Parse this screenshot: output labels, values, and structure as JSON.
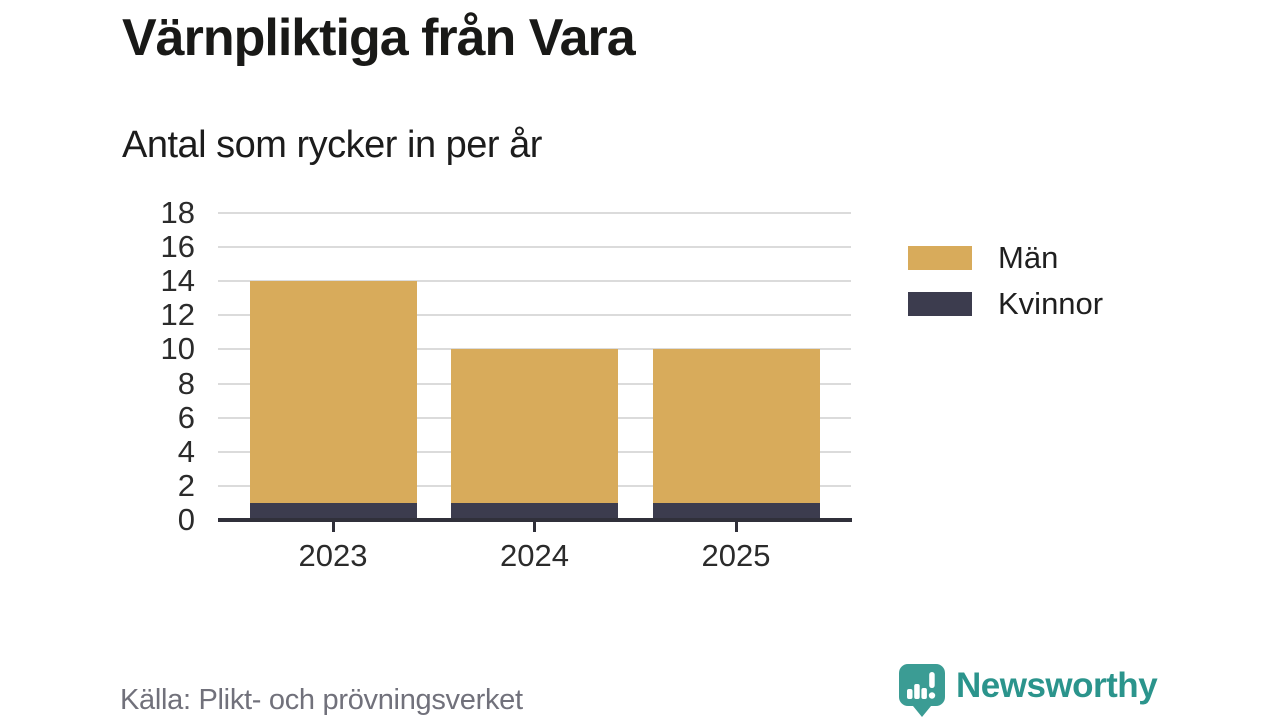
{
  "header": {
    "title": "Värnpliktiga från Vara",
    "subtitle": "Antal som rycker in per år"
  },
  "chart_data": {
    "type": "bar",
    "stacked": true,
    "title": "Värnpliktiga från Vara",
    "subtitle": "Antal som rycker in per år",
    "categories": [
      "2023",
      "2024",
      "2025"
    ],
    "series": [
      {
        "name": "Män",
        "color": "#D8AB5B",
        "values": [
          13,
          9,
          9
        ]
      },
      {
        "name": "Kvinnor",
        "color": "#3C3C4E",
        "values": [
          1,
          1,
          1
        ]
      }
    ],
    "stack_order_bottom_to_top": [
      "Kvinnor",
      "Män"
    ],
    "stack_totals": [
      14,
      10,
      10
    ],
    "ylim": [
      0,
      18
    ],
    "yticks": [
      0,
      2,
      4,
      6,
      8,
      10,
      12,
      14,
      16,
      18
    ],
    "xlabel": "",
    "ylabel": "",
    "grid": true,
    "legend_position": "right",
    "source": "Källa: Plikt- och prövningsverket",
    "colors": {
      "grid": "#DBDBDB",
      "axis": "#30303A",
      "tick_label": "#2B2B2B",
      "background": "#FFFFFF"
    }
  },
  "legend": {
    "items": [
      {
        "label": "Män",
        "color": "#D8AB5B"
      },
      {
        "label": "Kvinnor",
        "color": "#3C3C4E"
      }
    ]
  },
  "footer": {
    "source": "Källa: Plikt- och prövningsverket",
    "brand": "Newsworthy",
    "brand_color": "#2B948C",
    "brand_icon": "speech-bubble-bar-chart-icon",
    "brand_icon_color": "#3B9C94"
  }
}
